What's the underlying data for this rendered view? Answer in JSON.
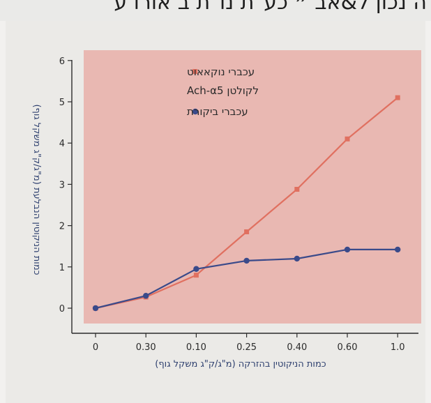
{
  "page": {
    "header_text": "ה נכון ל&אב ״ כע\"ת נו\"ת ב אורו ע"
  },
  "chart_data": {
    "type": "line",
    "categories": [
      "0",
      "0.30",
      "0.10",
      "0.25",
      "0.40",
      "0.60",
      "1.0"
    ],
    "ylim": [
      0,
      6
    ],
    "yticks": [
      "0",
      "1",
      "2",
      "3",
      "4",
      "5",
      "6"
    ],
    "xlabel": "כמות הניקוטין בהזרקה (מ\"ג/ק\"ג משקל גוף)",
    "ylabel": "כמות הניקוטין הנבלעת (מ\"ג/ק\"ג משקל גוף)",
    "grid": false,
    "legend_position": "top-left",
    "series": [
      {
        "name": "עכברי נוקאאוט לקולטן Ach-α5",
        "legend_lines": [
          "עכברי נוקאאוט",
          "לקולטן Ach-α5"
        ],
        "color": "#e07060",
        "values": [
          0.0,
          0.27,
          0.8,
          1.85,
          2.88,
          4.1,
          5.1
        ]
      },
      {
        "name": "עכברי ביקורת",
        "legend_lines": [
          "עכברי ביקורת"
        ],
        "color": "#3a4a8a",
        "values": [
          0.0,
          0.3,
          0.95,
          1.15,
          1.2,
          1.42,
          1.42
        ]
      }
    ]
  }
}
